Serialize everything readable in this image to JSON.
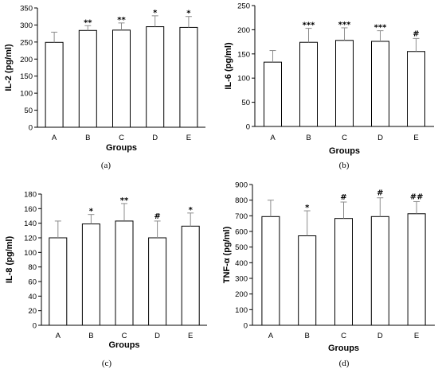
{
  "chart_data": [
    {
      "type": "bar",
      "panel_label": "(a)",
      "categories": [
        "A",
        "B",
        "C",
        "D",
        "E"
      ],
      "values": [
        249,
        284,
        285,
        295,
        293
      ],
      "errors": [
        30,
        14,
        21,
        32,
        32
      ],
      "significance": [
        "",
        "**",
        "**",
        "*",
        "*"
      ],
      "xlabel": "Groups",
      "ylabel": "IL-2 (pg/ml)",
      "ylim": [
        0,
        350
      ],
      "yticks": [
        0,
        50,
        100,
        150,
        200,
        250,
        300,
        350
      ]
    },
    {
      "type": "bar",
      "panel_label": "(b)",
      "categories": [
        "A",
        "B",
        "C",
        "D",
        "E"
      ],
      "values": [
        133,
        174,
        178,
        176,
        155
      ],
      "errors": [
        24,
        29,
        26,
        22,
        27
      ],
      "significance": [
        "",
        "***",
        "***",
        "***",
        "#"
      ],
      "xlabel": "Groups",
      "ylabel": "IL-6 (pg/ml)",
      "ylim": [
        0,
        250
      ],
      "yticks": [
        0,
        50,
        100,
        150,
        200,
        250
      ]
    },
    {
      "type": "bar",
      "panel_label": "(c)",
      "categories": [
        "A",
        "B",
        "C",
        "D",
        "E"
      ],
      "values": [
        120,
        139,
        143,
        120,
        136
      ],
      "errors": [
        23,
        13,
        24,
        23,
        18
      ],
      "significance": [
        "",
        "*",
        "**",
        "#",
        "*"
      ],
      "xlabel": "Groups",
      "ylabel": "IL-8 (pg/ml)",
      "ylim": [
        0,
        180
      ],
      "yticks": [
        0,
        20,
        40,
        60,
        80,
        100,
        120,
        140,
        160,
        180
      ]
    },
    {
      "type": "bar",
      "panel_label": "(d)",
      "categories": [
        "A",
        "B",
        "C",
        "D",
        "E"
      ],
      "values": [
        695,
        572,
        683,
        695,
        713
      ],
      "errors": [
        105,
        160,
        105,
        120,
        78
      ],
      "significance": [
        "",
        "*",
        "#",
        "#",
        "##"
      ],
      "xlabel": "Groups",
      "ylabel": "TNF-α (pg/ml)",
      "ylim": [
        0,
        900
      ],
      "yticks": [
        0,
        100,
        200,
        300,
        400,
        500,
        600,
        700,
        800,
        900
      ]
    }
  ]
}
